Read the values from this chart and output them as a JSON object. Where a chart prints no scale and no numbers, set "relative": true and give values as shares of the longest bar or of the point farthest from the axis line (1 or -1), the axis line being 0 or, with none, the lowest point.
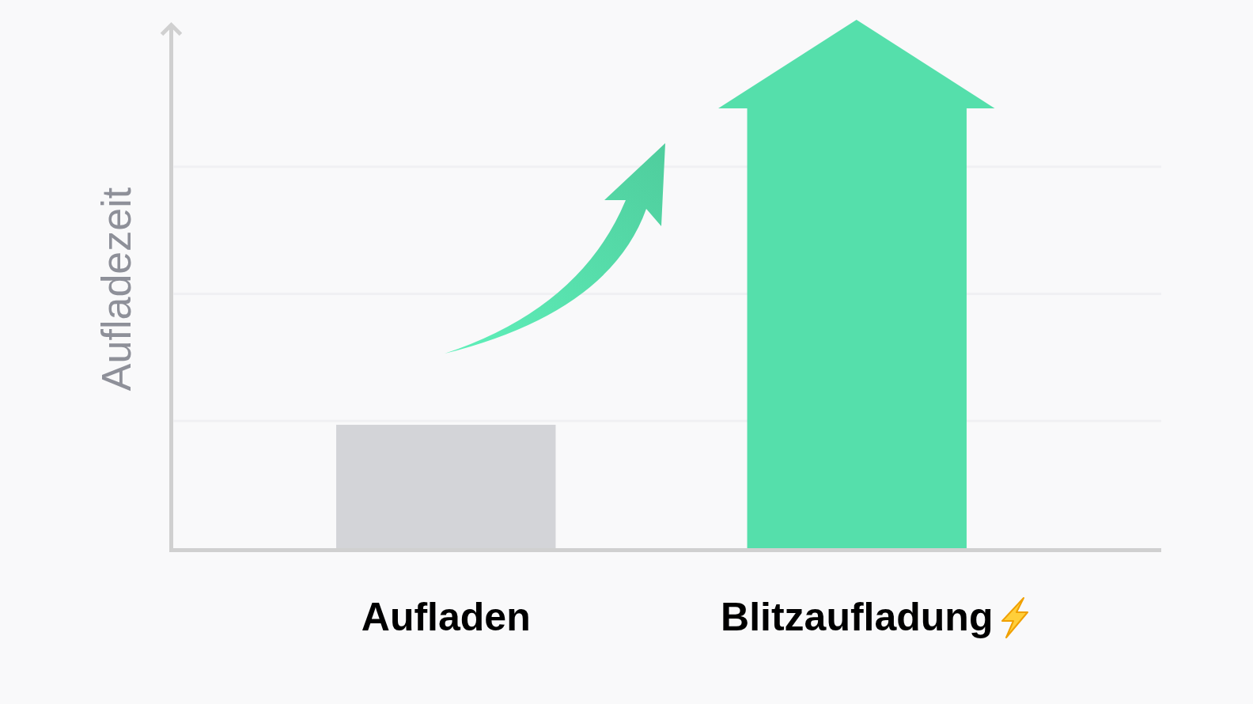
{
  "chart_data": {
    "type": "bar",
    "ylabel": "Aufladezeit",
    "categories": [
      "Aufladen",
      "Blitzaufladung"
    ],
    "values": [
      0.28,
      1
    ],
    "colors": [
      "#d3d4d8",
      "#55dfab"
    ],
    "relative": true,
    "grid": true
  }
}
